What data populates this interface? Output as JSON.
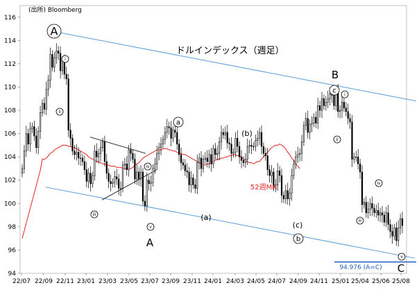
{
  "source": "(出所) Bloomberg",
  "chart_data": {
    "type": "candlestick",
    "title": "ドルインデックス（週足）",
    "ylim": [
      94,
      117
    ],
    "yticks": [
      94,
      96,
      98,
      100,
      102,
      104,
      106,
      108,
      110,
      112,
      114,
      116
    ],
    "xticks": [
      "22/07",
      "22/09",
      "22/11",
      "23/01",
      "23/03",
      "23/05",
      "23/07",
      "23/09",
      "23/11",
      "24/01",
      "24/03",
      "24/05",
      "24/07",
      "24/09",
      "24/11",
      "25/01",
      "25/04",
      "25/06",
      "25/08"
    ],
    "ma_label": "52週MA",
    "colors": {
      "candle": "#000000",
      "ma": "#e8231f",
      "channel": "#5b9bd5",
      "target": "#1f5fc0"
    },
    "weekly_close": [
      103.0,
      104.5,
      106.0,
      105.1,
      106.4,
      106.6,
      105.8,
      104.8,
      106.2,
      107.8,
      108.6,
      108.1,
      109.8,
      110.6,
      112.8,
      111.7,
      112.5,
      113.1,
      112.9,
      111.4,
      112.3,
      111.1,
      110.7,
      106.3,
      105.6,
      104.5,
      104.2,
      104.4,
      103.9,
      103.9,
      103.6,
      102.9,
      101.9,
      102.6,
      101.7,
      102.4,
      104.5,
      104.0,
      104.3,
      104.8,
      105.3,
      103.6,
      102.6,
      101.9,
      101.7,
      101.8,
      102.3,
      102.1,
      101.3,
      101.3,
      103.3,
      103.4,
      102.9,
      104.6,
      104.3,
      103.8,
      102.1,
      102.7,
      102.1,
      102.7,
      100.2,
      99.8,
      102.0,
      101.7,
      101.8,
      103.0,
      103.4,
      104.3,
      104.8,
      105.1,
      105.5,
      106.1,
      106.6,
      106.5,
      105.6,
      106.3,
      106.1,
      105.1,
      104.2,
      103.5,
      103.3,
      102.8,
      102.7,
      101.6,
      102.2,
      101.6,
      101.3,
      103.5,
      103.9,
      103.0,
      103.8,
      103.9,
      103.6,
      104.2,
      103.4,
      104.7,
      104.2,
      104.3,
      105.3,
      106.1,
      105.9,
      106.1,
      105.2,
      105.1,
      104.3,
      104.4,
      105.6,
      104.9,
      104.0,
      103.7,
      103.5,
      103.8,
      104.9,
      105.0,
      104.9,
      104.9,
      105.4,
      105.6,
      106.1,
      104.9,
      104.3,
      104.1,
      102.9,
      102.4,
      102.7,
      101.4,
      101.6,
      102.8,
      102.4,
      100.7,
      100.4,
      101.1,
      100.4,
      100.9,
      102.4,
      103.4,
      104.0,
      104.2,
      104.3,
      105.3,
      106.7,
      107.3,
      106.1,
      106.8,
      106.9,
      107.4,
      106.9,
      108.4,
      108.0,
      109.0,
      108.4,
      108.7,
      109.0,
      109.4,
      109.3,
      108.4,
      109.6,
      107.9,
      108.0,
      108.7,
      108.2,
      107.9,
      107.3,
      107.0,
      103.8,
      104.0,
      104.0,
      103.4,
      102.7,
      99.9,
      100.1,
      99.2,
      99.5,
      100.0,
      99.6,
      99.2,
      99.4,
      99.0,
      99.2,
      99.0,
      98.4,
      99.2,
      98.2,
      97.6,
      97.2,
      97.9,
      96.8,
      97.9,
      98.7,
      98.1
    ],
    "ma52_start_index": 10,
    "ma52": [
      103.8,
      103.8,
      103.9,
      104.1,
      104.3,
      104.4,
      104.6,
      104.7,
      104.8,
      104.9,
      105.0,
      105.0,
      105.0,
      104.9,
      104.9,
      104.8,
      104.8,
      104.7,
      104.6,
      104.5,
      104.4,
      104.3,
      104.2,
      104.0,
      103.9,
      103.8,
      103.7,
      103.6,
      103.6,
      103.5,
      103.4,
      103.4,
      103.3,
      103.3,
      103.2,
      103.2,
      103.2,
      103.1,
      103.1,
      103.1,
      103.0,
      103.0,
      103.0,
      103.0,
      103.0,
      103.1,
      103.3,
      103.4,
      103.5,
      103.7,
      103.9,
      104.0,
      104.1,
      104.2,
      104.3,
      104.4,
      104.5,
      104.6,
      104.6,
      104.6,
      104.7,
      104.7,
      104.7,
      104.6,
      104.6,
      104.5,
      104.5,
      104.4,
      104.3,
      104.3,
      104.2,
      104.2,
      104.1,
      104.0,
      103.9,
      103.8,
      103.7,
      103.6,
      103.5,
      103.4,
      103.3,
      103.3,
      103.4,
      103.4,
      103.5,
      103.6,
      103.7,
      103.8,
      103.8,
      103.9,
      103.9,
      104.0,
      104.0,
      104.1,
      104.1,
      104.2,
      104.2,
      104.1,
      104.1,
      104.0,
      103.8,
      103.7,
      103.6,
      103.5,
      103.5,
      103.4,
      103.5,
      103.6,
      103.6,
      103.8,
      104.0,
      104.2,
      104.4,
      104.6,
      104.8,
      104.9,
      105.0,
      105.0,
      105.1,
      105.0,
      104.9,
      104.7,
      104.4,
      104.2,
      103.9,
      103.7,
      103.4,
      103.2,
      103.0
    ],
    "annotations": {
      "A_big": "A",
      "a_top": "a",
      "b_top": "(b)",
      "a_low": "(a)",
      "c_low": "(c)",
      "b_circ": "b",
      "B_label": "B",
      "c_circ": "c",
      "A_label": "A",
      "C_label": "C",
      "ma_text": "52週MA",
      "target": "94.976 (A=C)",
      "roman": [
        "i",
        "ii",
        "iii",
        "iv",
        "v",
        "i",
        "ii",
        "iii",
        "iv",
        "v"
      ]
    }
  }
}
